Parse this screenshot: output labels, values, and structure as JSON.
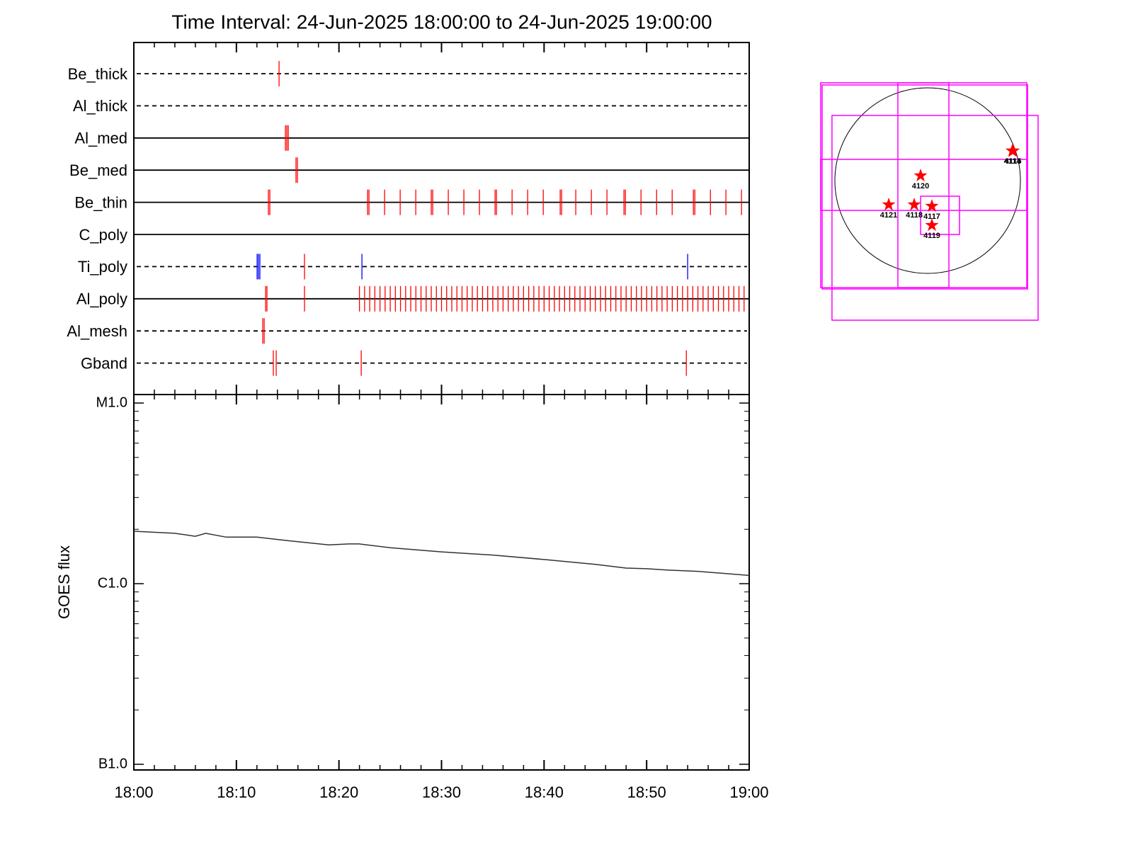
{
  "chart_data": [
    {
      "type": "timeline",
      "title": "Time Interval: 24-Jun-2025 18:00:00 to 24-Jun-2025 19:00:00",
      "xlim": [
        0,
        60
      ],
      "xticks": [
        {
          "value": 0,
          "label": "18:00"
        },
        {
          "value": 10,
          "label": "18:10"
        },
        {
          "value": 20,
          "label": "18:20"
        },
        {
          "value": 30,
          "label": "18:30"
        },
        {
          "value": 40,
          "label": "18:40"
        },
        {
          "value": 50,
          "label": "18:50"
        },
        {
          "value": 60,
          "label": "19:00"
        }
      ],
      "rows": [
        {
          "name": "Be_thick",
          "line": "dashed",
          "marks": [
            {
              "color": "#ff0000",
              "times": [
                14.16
              ]
            }
          ]
        },
        {
          "name": "Al_thick",
          "line": "dashed",
          "marks": []
        },
        {
          "name": "Al_med",
          "line": "solid",
          "marks": [
            {
              "color": "#ff0000",
              "times": [
                14.78,
                14.92,
                15.06
              ]
            }
          ]
        },
        {
          "name": "Be_med",
          "line": "solid",
          "marks": [
            {
              "color": "#ff0000",
              "times": [
                15.81,
                15.95
              ]
            }
          ]
        },
        {
          "name": "Be_thin",
          "line": "solid",
          "marks": [
            {
              "color": "#ff0000",
              "times": [
                13.12,
                13.26,
                22.79,
                22.93,
                24.45,
                25.97,
                27.49,
                29.0,
                29.14,
                30.66,
                32.18,
                33.7,
                35.22,
                35.36,
                36.88,
                38.4,
                39.92,
                41.57,
                41.71,
                43.09,
                44.61,
                46.13,
                47.79,
                47.93,
                49.45,
                50.97,
                52.49,
                54.56,
                54.7,
                56.22,
                57.73,
                59.25
              ]
            }
          ]
        },
        {
          "name": "C_poly",
          "line": "solid",
          "marks": []
        },
        {
          "name": "Ti_poly",
          "line": "dashed",
          "marks": [
            {
              "color": "#0000ff",
              "times": [
                12.02,
                12.15,
                12.29,
                22.24,
                54.0
              ]
            },
            {
              "color": "#ff0000",
              "times": [
                16.64
              ]
            }
          ]
        },
        {
          "name": "Al_poly",
          "line": "solid",
          "marks": [
            {
              "color": "#ff0000",
              "times": [
                12.85,
                12.98,
                16.64,
                22.0,
                22.5,
                23.0,
                23.5,
                24.0,
                24.5,
                25.0,
                25.5,
                26.0,
                26.5,
                27.0,
                27.5,
                28.0,
                28.5,
                29.0,
                29.5,
                30.0,
                30.5,
                31.0,
                31.5,
                32.0,
                32.5,
                33.0,
                33.5,
                34.0,
                34.5,
                35.0,
                35.5,
                36.0,
                36.5,
                37.0,
                37.5,
                38.0,
                38.5,
                39.0,
                39.5,
                40.0,
                40.5,
                41.0,
                41.5,
                42.0,
                42.5,
                43.0,
                43.5,
                44.0,
                44.5,
                45.0,
                45.5,
                46.0,
                46.5,
                47.0,
                47.5,
                48.0,
                48.5,
                49.0,
                49.5,
                50.0,
                50.5,
                51.0,
                51.5,
                52.0,
                52.5,
                53.0,
                53.5,
                54.0,
                54.5,
                55.0,
                55.5,
                56.0,
                56.5,
                57.0,
                57.5,
                58.0,
                58.5,
                59.0,
                59.5
              ]
            }
          ]
        },
        {
          "name": "Al_mesh",
          "line": "dashed",
          "marks": [
            {
              "color": "#ff0000",
              "times": [
                12.57,
                12.71
              ]
            }
          ]
        },
        {
          "name": "Gband",
          "line": "dashed",
          "marks": [
            {
              "color": "#ff0000",
              "times": [
                13.6,
                13.88,
                22.17,
                53.87
              ]
            }
          ]
        }
      ]
    },
    {
      "type": "line",
      "ylabel": "GOES flux",
      "log_scale": true,
      "color": "#333333",
      "xlim": [
        0,
        60
      ],
      "xticks": [
        {
          "value": 0,
          "label": "18:00"
        },
        {
          "value": 10,
          "label": "18:10"
        },
        {
          "value": 20,
          "label": "18:20"
        },
        {
          "value": 30,
          "label": "18:30"
        },
        {
          "value": 40,
          "label": "18:40"
        },
        {
          "value": 50,
          "label": "18:50"
        },
        {
          "value": 60,
          "label": "19:00"
        }
      ],
      "ylim": [
        1e-07,
        1e-05
      ],
      "yticks": [
        {
          "value": 1e-07,
          "label": "B1.0"
        },
        {
          "value": 1e-06,
          "label": "C1.0"
        },
        {
          "value": 1e-05,
          "label": "M1.0"
        }
      ],
      "x": [
        0,
        4,
        6,
        7,
        9,
        12,
        15,
        19,
        21,
        22,
        25,
        30,
        35,
        40,
        45,
        48,
        50,
        52,
        55,
        60
      ],
      "values": [
        1.95e-06,
        1.9e-06,
        1.83e-06,
        1.9e-06,
        1.81e-06,
        1.81e-06,
        1.73e-06,
        1.64e-06,
        1.66e-06,
        1.66e-06,
        1.58e-06,
        1.5e-06,
        1.44e-06,
        1.36e-06,
        1.28e-06,
        1.22e-06,
        1.21e-06,
        1.19e-06,
        1.17e-06,
        1.11e-06
      ]
    },
    {
      "type": "map",
      "disk_radius": 960,
      "color": "#ff00ff",
      "boxes": [
        [
          -1107,
          1026,
          -1107,
          1012
        ],
        [
          -990,
          1143,
          -1444,
          674
        ],
        [
          -1092,
          1034,
          -1121,
          990
        ],
        [
          -308,
          220,
          -1107,
          1012
        ],
        [
          -1107,
          1026,
          -308,
          220
        ],
        [
          -73,
          330,
          -557,
          -161
        ]
      ],
      "regions": [
        {
          "label": "4121",
          "x": -403,
          "y": -249
        },
        {
          "label": "4118",
          "x": -139,
          "y": -249
        },
        {
          "label": "4117",
          "x": 44,
          "y": -264
        },
        {
          "label": "4120",
          "x": -73,
          "y": 51
        },
        {
          "label": "4119",
          "x": 44,
          "y": -462
        },
        {
          "label": "4114",
          "x": 876,
          "y": 308
        },
        {
          "label": "4115",
          "x": 884,
          "y": 308
        }
      ]
    }
  ]
}
